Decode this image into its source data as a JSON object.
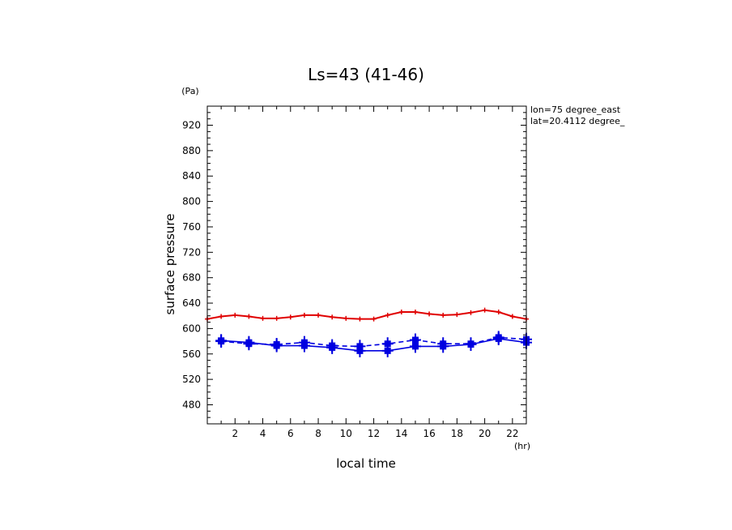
{
  "chart_data": {
    "type": "line",
    "title": "Ls=43 (41-46)",
    "xlabel": "local time",
    "ylabel": "surface pressure",
    "x_unit": "(hr)",
    "y_unit": "(Pa)",
    "xlim": [
      0,
      23
    ],
    "ylim": [
      450,
      950
    ],
    "x_ticks": [
      2,
      4,
      6,
      8,
      10,
      12,
      14,
      16,
      18,
      20,
      22
    ],
    "y_ticks": [
      480,
      520,
      560,
      600,
      640,
      680,
      720,
      760,
      800,
      840,
      880,
      920
    ],
    "info_lines": [
      "lon=75 degree_east",
      "lat=20.4112 degree_"
    ],
    "series": [
      {
        "color": "#e00000",
        "style": "solid",
        "marker": "small-plus",
        "x": [
          0,
          1,
          2,
          3,
          4,
          5,
          6,
          7,
          8,
          9,
          10,
          11,
          12,
          13,
          14,
          15,
          16,
          17,
          18,
          19,
          20,
          21,
          22,
          23
        ],
        "y": [
          615,
          619,
          621,
          619,
          616,
          616,
          618,
          621,
          621,
          618,
          616,
          615,
          615,
          621,
          626,
          626,
          623,
          621,
          622,
          625,
          629,
          626,
          619,
          615
        ]
      },
      {
        "color": "#0000e0",
        "style": "solid",
        "marker": "square-plus",
        "x": [
          1,
          3,
          5,
          7,
          9,
          11,
          13,
          15,
          17,
          19,
          21,
          23
        ],
        "y": [
          581,
          578,
          573,
          573,
          570,
          565,
          565,
          572,
          572,
          575,
          584,
          578
        ]
      },
      {
        "color": "#0000e0",
        "style": "dashed",
        "marker": "square-plus",
        "x": [
          1,
          3,
          5,
          7,
          9,
          11,
          13,
          15,
          17,
          19,
          21,
          23
        ],
        "y": [
          580,
          576,
          575,
          578,
          573,
          572,
          576,
          582,
          576,
          576,
          586,
          583
        ]
      }
    ]
  }
}
